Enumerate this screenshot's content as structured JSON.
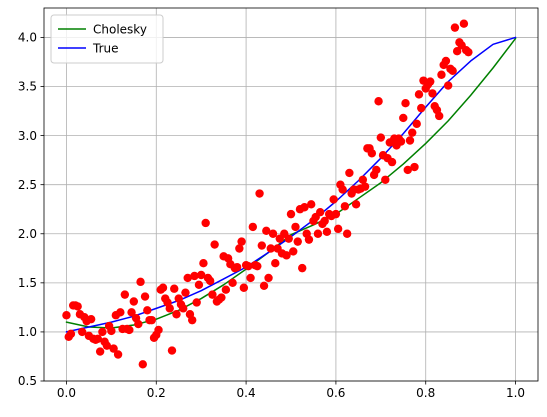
{
  "chart_data": {
    "type": "scatter",
    "title": "",
    "xlabel": "",
    "ylabel": "",
    "xlim": [
      -0.05,
      1.05
    ],
    "ylim": [
      0.5,
      4.3
    ],
    "xticks": [
      0.0,
      0.2,
      0.4,
      0.6,
      0.8,
      1.0
    ],
    "xtick_labels": [
      "0.0",
      "0.2",
      "0.4",
      "0.6",
      "0.8",
      "1.0"
    ],
    "yticks": [
      0.5,
      1.0,
      1.5,
      2.0,
      2.5,
      3.0,
      3.5,
      4.0
    ],
    "ytick_labels": [
      "0.5",
      "1.0",
      "1.5",
      "2.0",
      "2.5",
      "3.0",
      "3.5",
      "4.0"
    ],
    "grid": true,
    "legend_position": "top-left",
    "legend": [
      {
        "label": "Cholesky",
        "color": "#008000",
        "kind": "line"
      },
      {
        "label": "True",
        "color": "#0000ff",
        "kind": "line"
      }
    ],
    "line_series": [
      {
        "name": "Cholesky",
        "color": "#008000",
        "x": [
          0.0,
          0.05,
          0.1,
          0.15,
          0.2,
          0.25,
          0.3,
          0.35,
          0.4,
          0.45,
          0.5,
          0.55,
          0.6,
          0.65,
          0.7,
          0.75,
          0.8,
          0.85,
          0.9,
          0.95,
          1.0
        ],
        "y": [
          1.1,
          1.05,
          1.04,
          1.07,
          1.13,
          1.22,
          1.34,
          1.48,
          1.64,
          1.81,
          1.99,
          2.09,
          2.2,
          2.36,
          2.52,
          2.71,
          2.92,
          3.15,
          3.41,
          3.69,
          3.99
        ]
      },
      {
        "name": "True",
        "color": "#0000ff",
        "x": [
          0.0,
          0.05,
          0.1,
          0.15,
          0.2,
          0.25,
          0.3,
          0.35,
          0.4,
          0.45,
          0.5,
          0.55,
          0.6,
          0.65,
          0.7,
          0.75,
          0.8,
          0.85,
          0.9,
          0.95,
          1.0
        ],
        "y": [
          1.0,
          1.05,
          1.1,
          1.16,
          1.24,
          1.32,
          1.42,
          1.54,
          1.66,
          1.81,
          1.97,
          2.14,
          2.33,
          2.54,
          2.77,
          3.02,
          3.29,
          3.55,
          3.76,
          3.93,
          4.0
        ]
      }
    ],
    "scatter_series": [
      {
        "color": "#ff0000",
        "points": [
          [
            0.0,
            1.17
          ],
          [
            0.005,
            0.95
          ],
          [
            0.01,
            0.98
          ],
          [
            0.015,
            1.27
          ],
          [
            0.02,
            1.27
          ],
          [
            0.025,
            1.26
          ],
          [
            0.03,
            1.18
          ],
          [
            0.035,
            1.0
          ],
          [
            0.04,
            1.15
          ],
          [
            0.045,
            1.11
          ],
          [
            0.05,
            0.96
          ],
          [
            0.055,
            1.13
          ],
          [
            0.06,
            0.93
          ],
          [
            0.065,
            0.92
          ],
          [
            0.07,
            0.93
          ],
          [
            0.075,
            0.8
          ],
          [
            0.08,
            1.0
          ],
          [
            0.085,
            0.9
          ],
          [
            0.09,
            0.86
          ],
          [
            0.095,
            1.06
          ],
          [
            0.1,
            1.01
          ],
          [
            0.105,
            0.83
          ],
          [
            0.11,
            1.17
          ],
          [
            0.115,
            0.77
          ],
          [
            0.12,
            1.2
          ],
          [
            0.125,
            1.03
          ],
          [
            0.13,
            1.38
          ],
          [
            0.135,
            1.03
          ],
          [
            0.14,
            1.02
          ],
          [
            0.145,
            1.2
          ],
          [
            0.15,
            1.31
          ],
          [
            0.155,
            1.14
          ],
          [
            0.16,
            1.08
          ],
          [
            0.165,
            1.51
          ],
          [
            0.17,
            0.67
          ],
          [
            0.175,
            1.36
          ],
          [
            0.18,
            1.22
          ],
          [
            0.185,
            1.12
          ],
          [
            0.19,
            1.12
          ],
          [
            0.195,
            0.94
          ],
          [
            0.2,
            0.97
          ],
          [
            0.205,
            1.02
          ],
          [
            0.21,
            1.43
          ],
          [
            0.215,
            1.45
          ],
          [
            0.22,
            1.34
          ],
          [
            0.225,
            1.3
          ],
          [
            0.23,
            1.24
          ],
          [
            0.235,
            0.81
          ],
          [
            0.24,
            1.44
          ],
          [
            0.245,
            1.18
          ],
          [
            0.25,
            1.34
          ],
          [
            0.255,
            1.28
          ],
          [
            0.26,
            1.24
          ],
          [
            0.265,
            1.4
          ],
          [
            0.27,
            1.55
          ],
          [
            0.275,
            1.18
          ],
          [
            0.28,
            1.12
          ],
          [
            0.285,
            1.57
          ],
          [
            0.29,
            1.3
          ],
          [
            0.295,
            1.48
          ],
          [
            0.3,
            1.58
          ],
          [
            0.305,
            1.7
          ],
          [
            0.31,
            2.11
          ],
          [
            0.315,
            1.55
          ],
          [
            0.32,
            1.52
          ],
          [
            0.325,
            1.38
          ],
          [
            0.33,
            1.89
          ],
          [
            0.335,
            1.31
          ],
          [
            0.34,
            1.33
          ],
          [
            0.345,
            1.35
          ],
          [
            0.35,
            1.77
          ],
          [
            0.355,
            1.43
          ],
          [
            0.36,
            1.75
          ],
          [
            0.365,
            1.69
          ],
          [
            0.37,
            1.5
          ],
          [
            0.375,
            1.65
          ],
          [
            0.38,
            1.66
          ],
          [
            0.385,
            1.85
          ],
          [
            0.39,
            1.92
          ],
          [
            0.395,
            1.45
          ],
          [
            0.4,
            1.68
          ],
          [
            0.405,
            1.67
          ],
          [
            0.41,
            1.55
          ],
          [
            0.415,
            2.07
          ],
          [
            0.42,
            1.68
          ],
          [
            0.425,
            1.67
          ],
          [
            0.43,
            2.41
          ],
          [
            0.435,
            1.88
          ],
          [
            0.44,
            1.47
          ],
          [
            0.445,
            2.03
          ],
          [
            0.45,
            1.55
          ],
          [
            0.455,
            1.85
          ],
          [
            0.46,
            2.0
          ],
          [
            0.465,
            1.7
          ],
          [
            0.47,
            1.85
          ],
          [
            0.475,
            1.95
          ],
          [
            0.48,
            1.8
          ],
          [
            0.485,
            2.0
          ],
          [
            0.49,
            1.78
          ],
          [
            0.495,
            1.95
          ],
          [
            0.5,
            2.2
          ],
          [
            0.505,
            1.82
          ],
          [
            0.51,
            2.07
          ],
          [
            0.515,
            1.92
          ],
          [
            0.52,
            2.25
          ],
          [
            0.525,
            1.65
          ],
          [
            0.53,
            2.27
          ],
          [
            0.535,
            2.0
          ],
          [
            0.54,
            1.94
          ],
          [
            0.545,
            2.3
          ],
          [
            0.55,
            2.13
          ],
          [
            0.555,
            2.17
          ],
          [
            0.56,
            2.0
          ],
          [
            0.565,
            2.22
          ],
          [
            0.57,
            2.1
          ],
          [
            0.575,
            2.13
          ],
          [
            0.58,
            2.02
          ],
          [
            0.585,
            2.2
          ],
          [
            0.59,
            2.18
          ],
          [
            0.595,
            2.35
          ],
          [
            0.6,
            2.2
          ],
          [
            0.605,
            2.05
          ],
          [
            0.61,
            2.5
          ],
          [
            0.615,
            2.45
          ],
          [
            0.62,
            2.28
          ],
          [
            0.625,
            2.0
          ],
          [
            0.63,
            2.62
          ],
          [
            0.635,
            2.41
          ],
          [
            0.64,
            2.45
          ],
          [
            0.645,
            2.3
          ],
          [
            0.65,
            2.45
          ],
          [
            0.655,
            2.46
          ],
          [
            0.66,
            2.55
          ],
          [
            0.665,
            2.48
          ],
          [
            0.67,
            2.87
          ],
          [
            0.675,
            2.87
          ],
          [
            0.68,
            2.82
          ],
          [
            0.685,
            2.6
          ],
          [
            0.69,
            2.65
          ],
          [
            0.695,
            3.35
          ],
          [
            0.7,
            2.98
          ],
          [
            0.705,
            2.8
          ],
          [
            0.71,
            2.55
          ],
          [
            0.715,
            2.77
          ],
          [
            0.72,
            2.93
          ],
          [
            0.725,
            2.73
          ],
          [
            0.73,
            2.97
          ],
          [
            0.735,
            2.9
          ],
          [
            0.74,
            2.97
          ],
          [
            0.745,
            2.94
          ],
          [
            0.75,
            3.18
          ],
          [
            0.755,
            3.33
          ],
          [
            0.76,
            2.65
          ],
          [
            0.765,
            2.95
          ],
          [
            0.77,
            3.03
          ],
          [
            0.775,
            2.68
          ],
          [
            0.78,
            3.12
          ],
          [
            0.785,
            3.42
          ],
          [
            0.79,
            3.28
          ],
          [
            0.795,
            3.56
          ],
          [
            0.8,
            3.48
          ],
          [
            0.805,
            3.52
          ],
          [
            0.81,
            3.55
          ],
          [
            0.815,
            3.43
          ],
          [
            0.82,
            3.3
          ],
          [
            0.825,
            3.26
          ],
          [
            0.83,
            3.2
          ],
          [
            0.835,
            3.62
          ],
          [
            0.84,
            3.72
          ],
          [
            0.845,
            3.76
          ],
          [
            0.85,
            3.51
          ],
          [
            0.855,
            3.68
          ],
          [
            0.86,
            3.66
          ],
          [
            0.865,
            4.1
          ],
          [
            0.87,
            3.86
          ],
          [
            0.875,
            3.95
          ],
          [
            0.88,
            3.92
          ],
          [
            0.885,
            4.14
          ],
          [
            0.89,
            3.87
          ],
          [
            0.895,
            3.85
          ]
        ]
      }
    ]
  }
}
